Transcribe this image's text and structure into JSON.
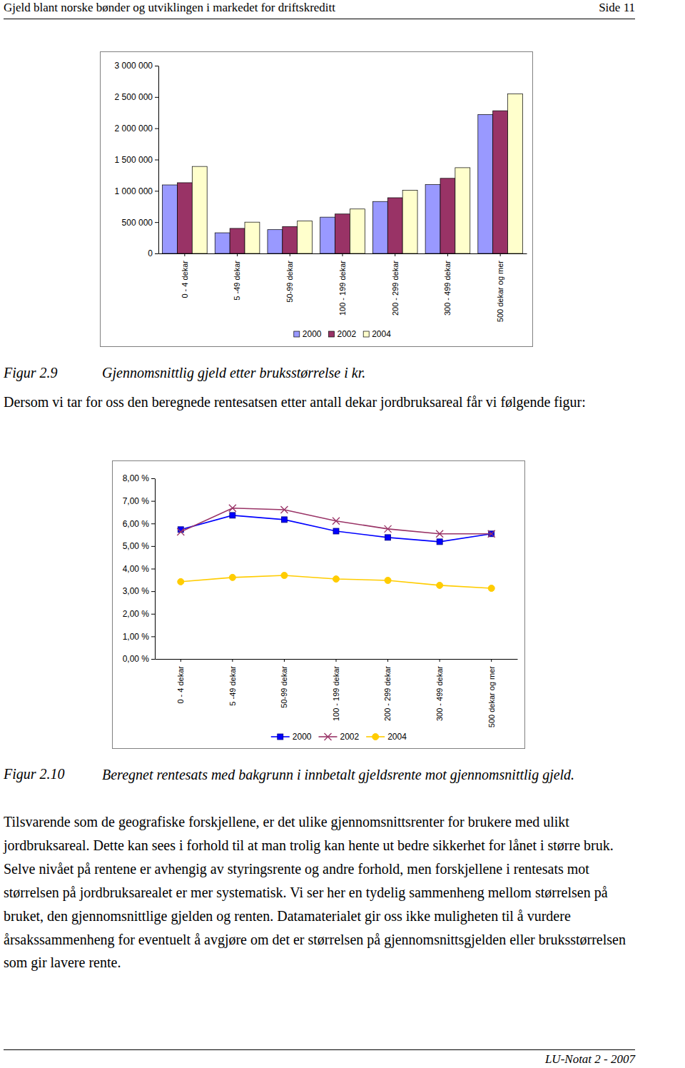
{
  "header": {
    "title": "Gjeld blant norske bønder og utviklingen i markedet for driftskreditt",
    "page": "Side 11"
  },
  "chart_data": [
    {
      "type": "bar",
      "categories": [
        "0 - 4 dekar",
        "5 -49 dekar",
        "50-99 dekar",
        "100 - 199 dekar",
        "200 - 299 dekar",
        "300 - 499 dekar",
        "500 dekar og mer"
      ],
      "series": [
        {
          "name": "2000",
          "color": "#9999ff",
          "values": [
            1095000,
            330000,
            380000,
            580000,
            830000,
            1100000,
            2220000
          ]
        },
        {
          "name": "2002",
          "color": "#993366",
          "values": [
            1130000,
            400000,
            430000,
            630000,
            890000,
            1200000,
            2280000
          ]
        },
        {
          "name": "2004",
          "color": "#ffffcc",
          "values": [
            1390000,
            500000,
            520000,
            710000,
            1010000,
            1370000,
            2550000
          ]
        }
      ],
      "ylim": [
        0,
        3000000
      ],
      "yticks": [
        0,
        {
          "value": 500000,
          "label": "500 000"
        },
        {
          "value": 1000000,
          "label": "1 000 000"
        },
        {
          "value": 1500000,
          "label": "1 500 000"
        },
        {
          "value": 2000000,
          "label": "2 000 000"
        },
        {
          "value": 2500000,
          "label": "2 500 000"
        },
        {
          "value": 3000000,
          "label": "3 000 000"
        }
      ],
      "grid": false,
      "legend": "bottom"
    },
    {
      "type": "line",
      "categories": [
        "0 - 4 dekar",
        "5 -49 dekar",
        "50-99 dekar",
        "100 - 199 dekar",
        "200 - 299 dekar",
        "300 - 499 dekar",
        "500 dekar og mer"
      ],
      "series": [
        {
          "name": "2000",
          "color": "#0000ff",
          "marker": "square",
          "values": [
            5.73,
            6.36,
            6.17,
            5.66,
            5.38,
            5.19,
            5.54
          ]
        },
        {
          "name": "2002",
          "color": "#993366",
          "marker": "x",
          "values": [
            5.63,
            6.68,
            6.61,
            6.11,
            5.76,
            5.54,
            5.54
          ]
        },
        {
          "name": "2004",
          "color": "#ffcc00",
          "marker": "circle",
          "values": [
            3.42,
            3.61,
            3.7,
            3.54,
            3.48,
            3.26,
            3.13
          ]
        }
      ],
      "ylim": [
        0,
        8
      ],
      "yticks": [
        {
          "value": 0,
          "label": "0,00 %"
        },
        {
          "value": 1,
          "label": "1,00 %"
        },
        {
          "value": 2,
          "label": "2,00 %"
        },
        {
          "value": 3,
          "label": "3,00 %"
        },
        {
          "value": 4,
          "label": "4,00 %"
        },
        {
          "value": 5,
          "label": "5,00 %"
        },
        {
          "value": 6,
          "label": "6,00 %"
        },
        {
          "value": 7,
          "label": "7,00 %"
        },
        {
          "value": 8,
          "label": "8,00 %"
        }
      ],
      "grid": false,
      "legend": "bottom"
    }
  ],
  "figures": [
    {
      "label": "Figur 2.9",
      "caption": "Gjennomsnittlig gjeld etter bruksstørrelse i kr."
    },
    {
      "label": "Figur 2.10",
      "caption": "Beregnet rentesats med bakgrunn i innbetalt gjeldsrente mot gjennomsnittlig gjeld."
    }
  ],
  "paragraphs": [
    "Dersom vi tar for oss den beregnede rentesatsen etter antall dekar jordbruksareal får vi følgende figur:",
    "Tilsvarende som de geografiske forskjellene, er det ulike gjennomsnittsrenter for brukere med ulikt jordbruksareal. Dette kan sees i forhold til at man trolig kan hente ut bedre sikkerhet for lånet i større bruk. Selve nivået på rentene er avhengig av styringsrente og andre forhold, men forskjellene i rentesats mot størrelsen på jordbruksarealet er mer systematisk. Vi ser her en tydelig sammenheng mellom størrelsen på bruket, den gjennomsnittlige gjelden og renten. Datamaterialet gir oss ikke muligheten til å vurdere årsakssammenheng for eventuelt å avgjøre om det er størrelsen på gjennomsnittsgjelden eller bruksstørrelsen som gir lavere rente."
  ],
  "footer": "LU-Notat 2 - 2007"
}
